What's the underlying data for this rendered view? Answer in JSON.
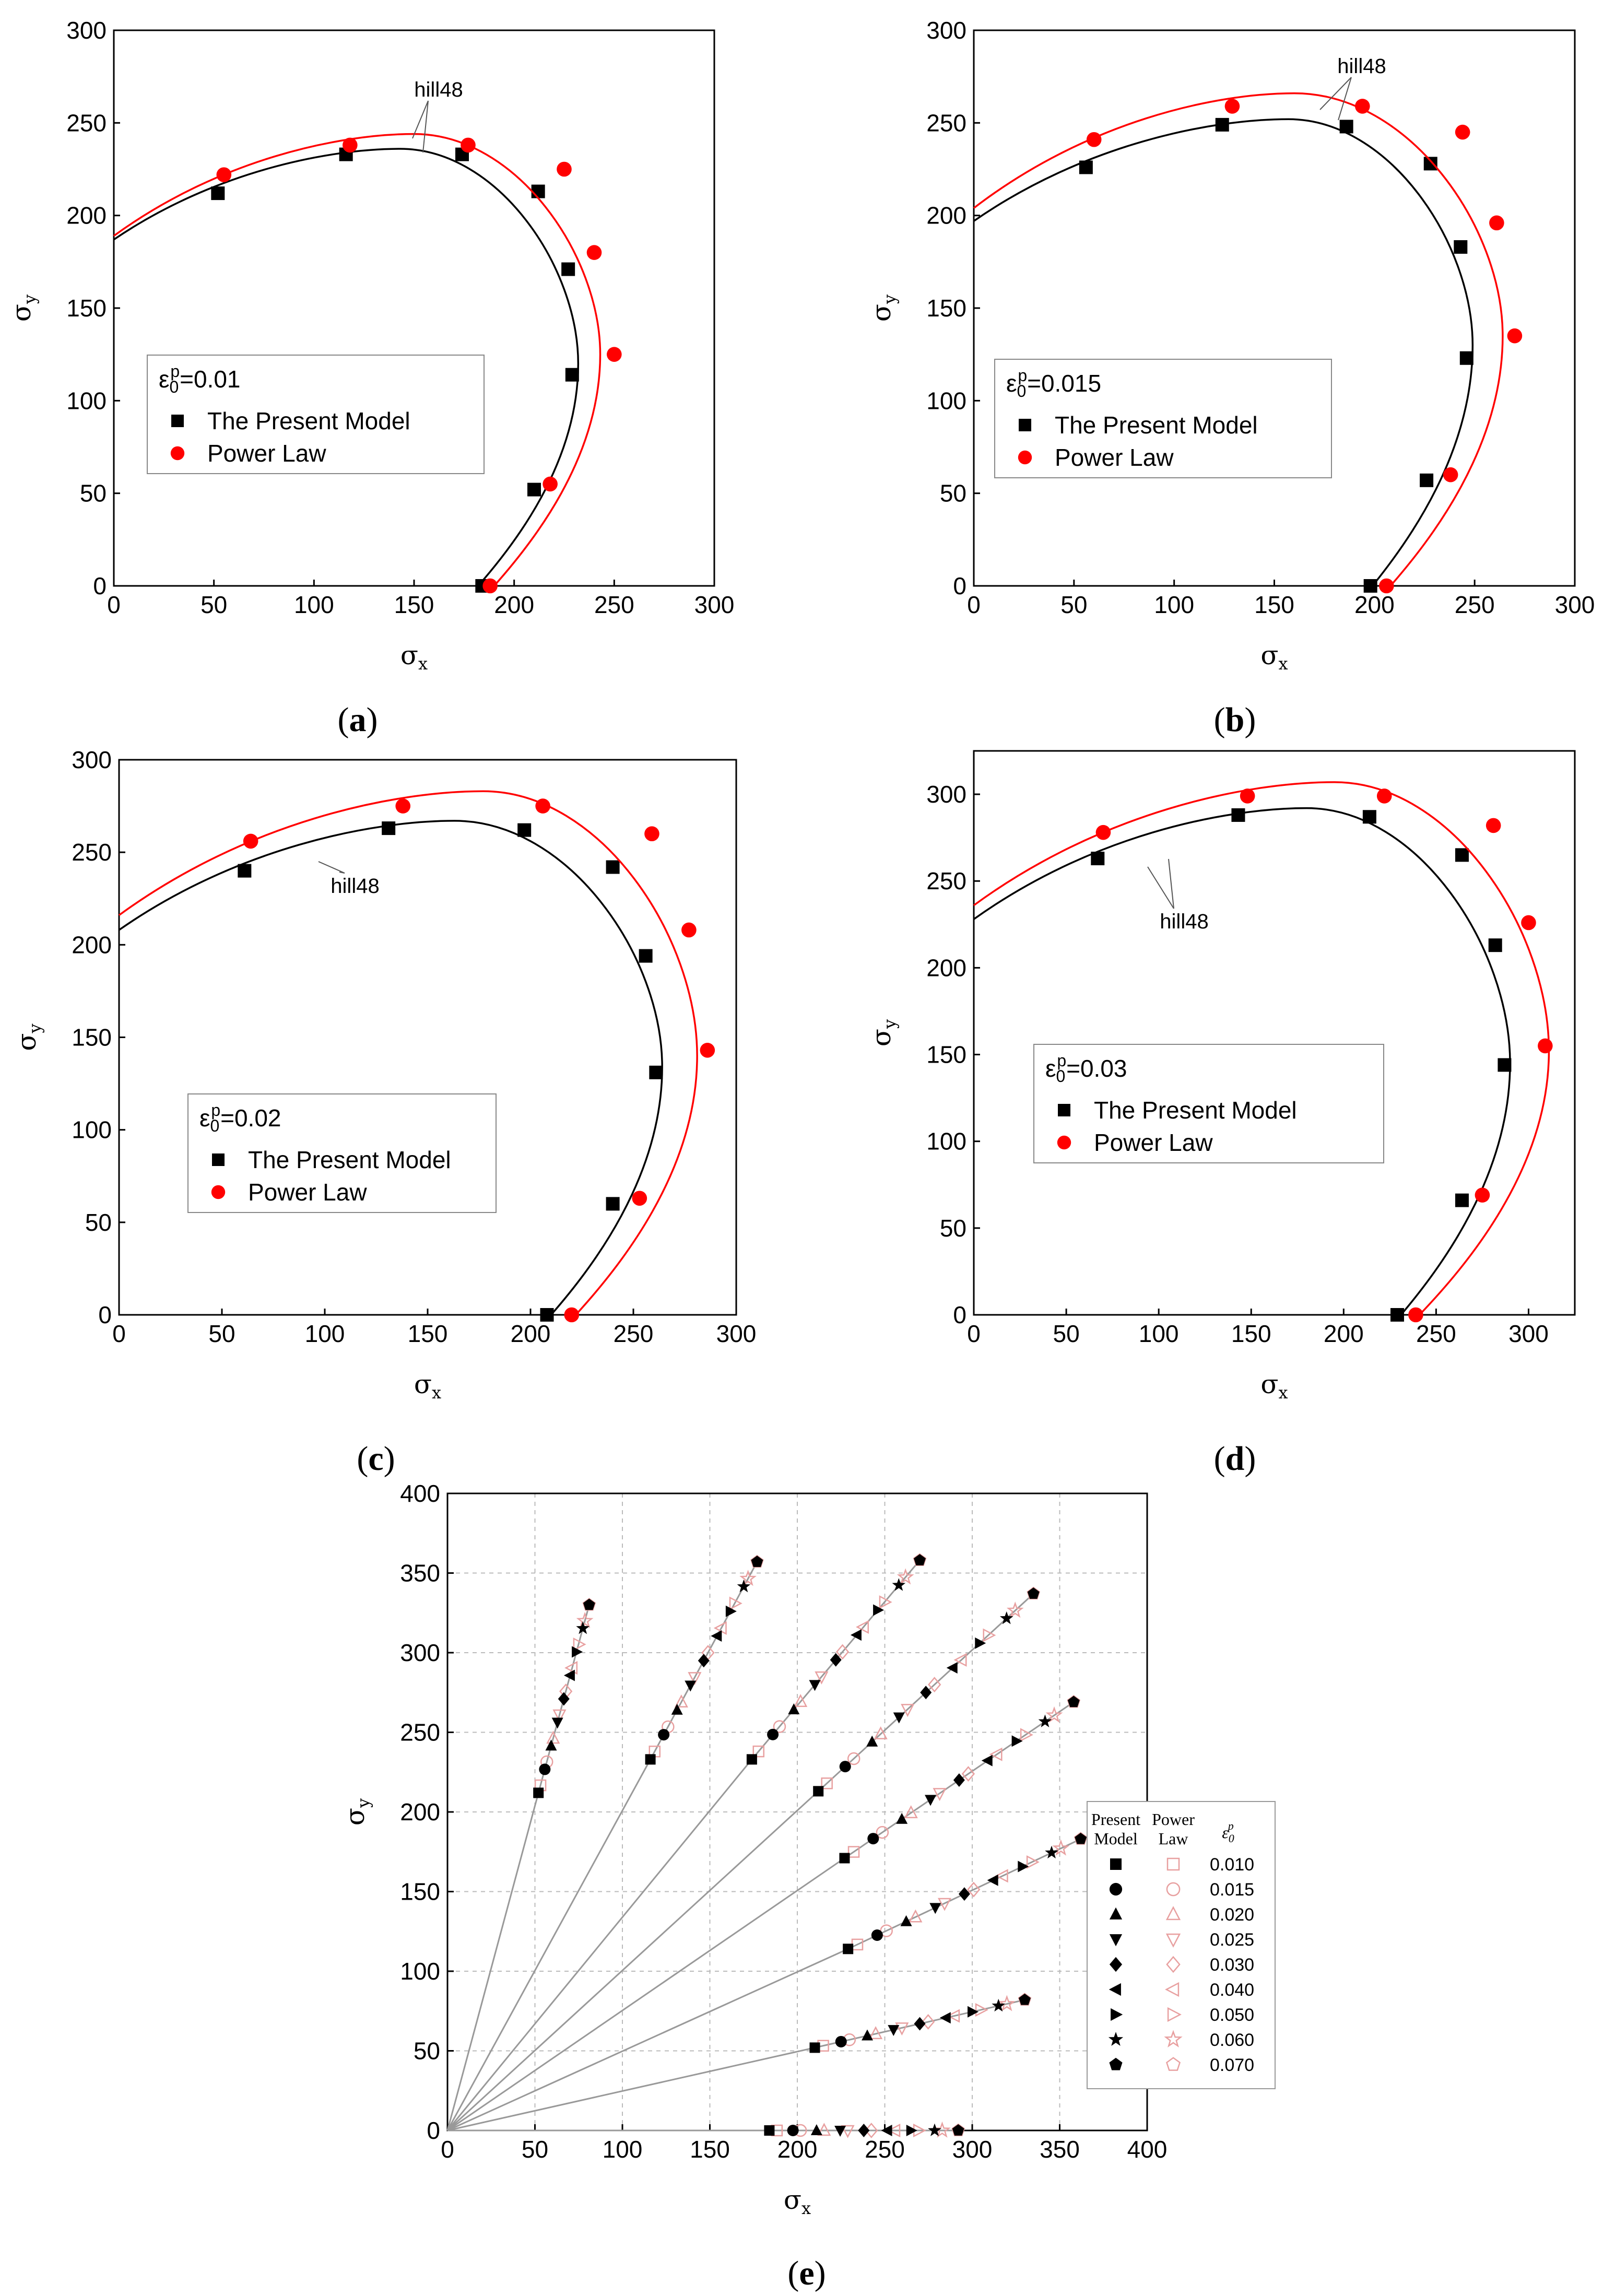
{
  "panels": [
    {
      "id": "a",
      "caption_open": "(",
      "caption_letter": "a",
      "caption_close": ")",
      "legend": {
        "strain_symbol": "ε",
        "strain_sub": "0",
        "strain_sup": "p",
        "strain_value": "=0.01",
        "series": [
          "The Present Model",
          "Power Law"
        ]
      },
      "annotation": "hill48"
    },
    {
      "id": "b",
      "caption_open": "(",
      "caption_letter": "b",
      "caption_close": ")",
      "legend": {
        "strain_symbol": "ε",
        "strain_sub": "0",
        "strain_sup": "p",
        "strain_value": "=0.015",
        "series": [
          "The Present Model",
          "Power Law"
        ]
      },
      "annotation": "hill48"
    },
    {
      "id": "c",
      "caption_open": "(",
      "caption_letter": "c",
      "caption_close": ")",
      "legend": {
        "strain_symbol": "ε",
        "strain_sub": "0",
        "strain_sup": "p",
        "strain_value": "=0.02",
        "series": [
          "The Present Model",
          "Power Law"
        ]
      },
      "annotation": "hill48"
    },
    {
      "id": "d",
      "caption_open": "(",
      "caption_letter": "d",
      "caption_close": ")",
      "legend": {
        "strain_symbol": "ε",
        "strain_sub": "0",
        "strain_sup": "p",
        "strain_value": "=0.03",
        "series": [
          "The Present Model",
          "Power Law"
        ]
      },
      "annotation": "hill48"
    },
    {
      "id": "e",
      "caption_open": "(",
      "caption_letter": "e",
      "caption_close": ")",
      "legend": {
        "col_present": [
          "Present",
          "Model"
        ],
        "col_power": [
          "Power",
          "Law"
        ],
        "col_strain_symbol": "ε",
        "col_strain_sub": "0",
        "col_strain_sup": "p",
        "levels": [
          "0.010",
          "0.015",
          "0.020",
          "0.025",
          "0.030",
          "0.040",
          "0.050",
          "0.060",
          "0.070"
        ]
      }
    }
  ],
  "colors": {
    "present_model": "#000000",
    "power_law": "#ff0000",
    "power_law_open": "#e8a0a0",
    "ray": "#999999",
    "grid": "#bbbbbb"
  },
  "chart_data": [
    {
      "type": "scatter",
      "title": "",
      "xlabel": "σx",
      "ylabel": "σy",
      "xlim": [
        0,
        300
      ],
      "ylim": [
        0,
        300
      ],
      "xticks": [
        0,
        50,
        100,
        150,
        200,
        250,
        300
      ],
      "yticks": [
        0,
        50,
        100,
        150,
        200,
        250,
        300
      ],
      "series": [
        {
          "name": "The Present Model",
          "marker": "square",
          "color": "#000000",
          "points": [
            [
              52,
              212
            ],
            [
              116,
              233
            ],
            [
              174,
              233
            ],
            [
              212,
              213
            ],
            [
              227,
              171
            ],
            [
              229,
              114
            ],
            [
              210,
              52
            ],
            [
              184,
              0
            ]
          ],
          "curve": {
            "x0": 0,
            "y0": 187,
            "peak": [
              143,
              236
            ],
            "xr": 232,
            "yr": 120,
            "xb": 182
          }
        },
        {
          "name": "Power Law",
          "marker": "circle",
          "color": "#ff0000",
          "points": [
            [
              55,
              222
            ],
            [
              118,
              238
            ],
            [
              177,
              238
            ],
            [
              225,
              225
            ],
            [
              240,
              180
            ],
            [
              250,
              125
            ],
            [
              218,
              55
            ],
            [
              188,
              0
            ]
          ],
          "curve": {
            "x0": 0,
            "y0": 189,
            "peak": [
              150,
              244
            ],
            "xr": 243,
            "yr": 125,
            "xb": 190
          }
        }
      ]
    },
    {
      "type": "scatter",
      "title": "",
      "xlabel": "σx",
      "ylabel": "σy",
      "xlim": [
        0,
        300
      ],
      "ylim": [
        0,
        300
      ],
      "xticks": [
        0,
        50,
        100,
        150,
        200,
        250,
        300
      ],
      "yticks": [
        0,
        50,
        100,
        150,
        200,
        250,
        300
      ],
      "series": [
        {
          "name": "The Present Model",
          "marker": "square",
          "color": "#000000",
          "points": [
            [
              56,
              226
            ],
            [
              124,
              249
            ],
            [
              186,
              248
            ],
            [
              228,
              228
            ],
            [
              243,
              183
            ],
            [
              246,
              123
            ],
            [
              226,
              57
            ],
            [
              198,
              0
            ]
          ],
          "curve": {
            "x0": 0,
            "y0": 197,
            "peak": [
              157,
              252
            ],
            "xr": 249,
            "yr": 130,
            "xb": 199
          }
        },
        {
          "name": "Power Law",
          "marker": "circle",
          "color": "#ff0000",
          "points": [
            [
              60,
              241
            ],
            [
              129,
              259
            ],
            [
              194,
              259
            ],
            [
              244,
              245
            ],
            [
              261,
              196
            ],
            [
              270,
              135
            ],
            [
              238,
              60
            ],
            [
              206,
              0
            ]
          ],
          "curve": {
            "x0": 0,
            "y0": 204,
            "peak": [
              160,
              266
            ],
            "xr": 264,
            "yr": 135,
            "xb": 208
          }
        }
      ]
    },
    {
      "type": "scatter",
      "title": "",
      "xlabel": "σx",
      "ylabel": "σy",
      "xlim": [
        0,
        300
      ],
      "ylim": [
        0,
        300
      ],
      "xticks": [
        0,
        50,
        100,
        150,
        200,
        250,
        300
      ],
      "yticks": [
        0,
        50,
        100,
        150,
        200,
        250,
        300
      ],
      "series": [
        {
          "name": "The Present Model",
          "marker": "square",
          "color": "#000000",
          "points": [
            [
              61,
              240
            ],
            [
              131,
              263
            ],
            [
              197,
              262
            ],
            [
              240,
              242
            ],
            [
              256,
              194
            ],
            [
              261,
              131
            ],
            [
              240,
              60
            ],
            [
              208,
              0
            ]
          ],
          "curve": {
            "x0": 0,
            "y0": 208,
            "peak": [
              163,
              267
            ],
            "xr": 264,
            "yr": 134,
            "xb": 210
          }
        },
        {
          "name": "Power Law",
          "marker": "circle",
          "color": "#ff0000",
          "points": [
            [
              64,
              256
            ],
            [
              138,
              275
            ],
            [
              206,
              275
            ],
            [
              259,
              260
            ],
            [
              277,
              208
            ],
            [
              286,
              143
            ],
            [
              253,
              63
            ],
            [
              220,
              0
            ]
          ],
          "curve": {
            "x0": 0,
            "y0": 216,
            "peak": [
              177,
              283
            ],
            "xr": 281,
            "yr": 140,
            "xb": 222
          }
        }
      ]
    },
    {
      "type": "scatter",
      "title": "",
      "xlabel": "σx",
      "ylabel": "σy",
      "xlim": [
        0,
        325
      ],
      "ylim": [
        0,
        325
      ],
      "xticks": [
        0,
        50,
        100,
        150,
        200,
        250,
        300
      ],
      "yticks": [
        0,
        50,
        100,
        150,
        200,
        250,
        300
      ],
      "series": [
        {
          "name": "The Present Model",
          "marker": "square",
          "color": "#000000",
          "points": [
            [
              67,
              263
            ],
            [
              143,
              288
            ],
            [
              214,
              287
            ],
            [
              264,
              265
            ],
            [
              282,
              213
            ],
            [
              287,
              144
            ],
            [
              264,
              66
            ],
            [
              229,
              0
            ]
          ],
          "curve": {
            "x0": 0,
            "y0": 228,
            "peak": [
              180,
              292
            ],
            "xr": 290,
            "yr": 145,
            "xb": 231
          }
        },
        {
          "name": "Power Law",
          "marker": "circle",
          "color": "#ff0000",
          "points": [
            [
              70,
              278
            ],
            [
              148,
              299
            ],
            [
              222,
              299
            ],
            [
              281,
              282
            ],
            [
              300,
              226
            ],
            [
              309,
              155
            ],
            [
              275,
              69
            ],
            [
              239,
              0
            ]
          ],
          "curve": {
            "x0": 0,
            "y0": 236,
            "peak": [
              195,
              307
            ],
            "xr": 311,
            "yr": 152,
            "xb": 241
          }
        }
      ]
    },
    {
      "type": "scatter",
      "title": "",
      "xlabel": "σx",
      "ylabel": "σy",
      "xlim": [
        0,
        400
      ],
      "ylim": [
        0,
        400
      ],
      "xticks": [
        0,
        50,
        100,
        150,
        200,
        250,
        300,
        350,
        400
      ],
      "yticks": [
        0,
        50,
        100,
        150,
        200,
        250,
        300,
        350,
        400
      ],
      "grid": true,
      "rays": [
        {
          "start": [
            52,
            212
          ],
          "end": [
            81,
            330
          ]
        },
        {
          "start": [
            116,
            233
          ],
          "end": [
            177,
            357
          ]
        },
        {
          "start": [
            174,
            233
          ],
          "end": [
            270,
            358
          ]
        },
        {
          "start": [
            212,
            213
          ],
          "end": [
            335,
            337
          ]
        },
        {
          "start": [
            227,
            171
          ],
          "end": [
            358,
            269
          ]
        },
        {
          "start": [
            229,
            114
          ],
          "end": [
            362,
            183
          ]
        },
        {
          "start": [
            210,
            52
          ],
          "end": [
            330,
            82
          ]
        },
        {
          "start": [
            184,
            0
          ],
          "end": [
            292,
            0
          ]
        }
      ],
      "levels": [
        "0.010",
        "0.015",
        "0.020",
        "0.025",
        "0.030",
        "0.040",
        "0.050",
        "0.060",
        "0.070"
      ],
      "markers_present": [
        "square",
        "circle",
        "triangle-up",
        "triangle-down",
        "diamond",
        "triangle-left",
        "triangle-right",
        "star",
        "pentagon"
      ],
      "markers_power": [
        "square",
        "circle",
        "triangle-up",
        "triangle-down",
        "diamond",
        "triangle-left",
        "triangle-right",
        "star",
        "pentagon"
      ]
    }
  ]
}
